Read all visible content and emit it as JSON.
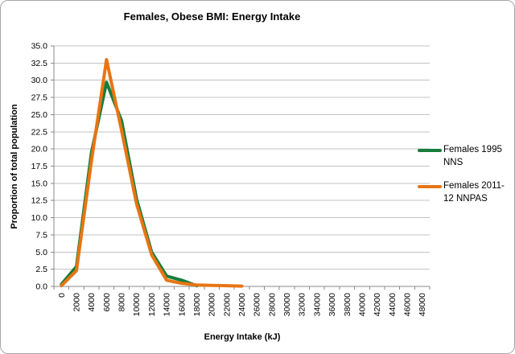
{
  "chart": {
    "title": "Females, Obese BMI: Energy Intake",
    "y_axis": {
      "title": "Proportion of total population",
      "tick_labels": [
        "0.0",
        "2.5",
        "5.0",
        "7.5",
        "10.0",
        "12.5",
        "15.0",
        "17.5",
        "20.0",
        "22.5",
        "25.0",
        "27.5",
        "30.0",
        "32.5",
        "35.0"
      ]
    },
    "x_axis": {
      "title": "Energy Intake (kJ)",
      "tick_labels": [
        "0",
        "2000",
        "4000",
        "6000",
        "8000",
        "10000",
        "12000",
        "14000",
        "16000",
        "18000",
        "20000",
        "22000",
        "24000",
        "26000",
        "28000",
        "30000",
        "32000",
        "34000",
        "36000",
        "38000",
        "40000",
        "42000",
        "44000",
        "46000",
        "48000"
      ]
    },
    "legend": [
      {
        "label": "Females 1995 NNS",
        "lines": [
          "Females 1995",
          "NNS"
        ],
        "color": "#177d3b"
      },
      {
        "label": "Females 2011-12 NNPAS",
        "lines": [
          "Females 2011-",
          "12 NNPAS"
        ],
        "color": "#e87513"
      }
    ],
    "colors": {
      "gridline": "#c3c3c3",
      "axis": "#8a8a8a",
      "text": "#000000"
    }
  },
  "chart_data": {
    "type": "line",
    "title": "Females, Obese BMI: Energy Intake",
    "xlabel": "Energy Intake (kJ)",
    "ylabel": "Proportion of total population",
    "ylim": [
      0,
      35
    ],
    "ytick_step": 2.5,
    "grid": true,
    "legend_position": "right",
    "categories": [
      0,
      2000,
      4000,
      6000,
      8000,
      10000,
      12000,
      14000,
      16000,
      18000,
      20000,
      22000,
      24000,
      26000,
      28000,
      30000,
      32000,
      34000,
      36000,
      38000,
      40000,
      42000,
      44000,
      46000,
      48000
    ],
    "series": [
      {
        "name": "Females 1995 NNS",
        "color": "#177d3b",
        "values": [
          0.3,
          2.9,
          19.5,
          29.7,
          24.1,
          12.7,
          5.0,
          1.5,
          0.9,
          0.1,
          null,
          null,
          null,
          null,
          null,
          null,
          null,
          null,
          null,
          null,
          null,
          null,
          null,
          null,
          null
        ]
      },
      {
        "name": "Females 2011-12 NNPAS",
        "color": "#e87513",
        "values": [
          0.1,
          2.3,
          18.3,
          33.0,
          22.7,
          12.0,
          4.6,
          0.9,
          0.45,
          0.2,
          0.15,
          0.1,
          0.05,
          null,
          null,
          null,
          null,
          null,
          null,
          null,
          null,
          null,
          null,
          null,
          null
        ]
      }
    ]
  }
}
